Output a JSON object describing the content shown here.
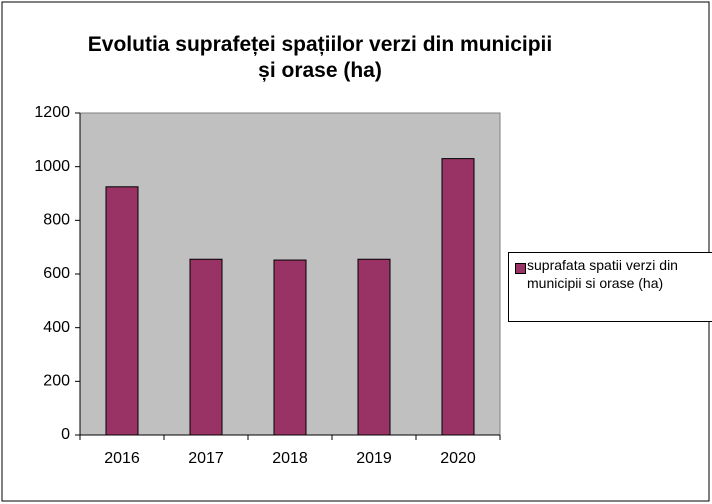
{
  "chart_data": {
    "type": "bar",
    "title": "Evolutia suprafeței  spațiilor verzi din municipii și orase (ha)",
    "categories": [
      "2016",
      "2017",
      "2018",
      "2019",
      "2020"
    ],
    "series": [
      {
        "name": "suprafata spatii verzi din municipii si orase (ha)",
        "color": "#993366",
        "values": [
          925,
          655,
          652,
          655,
          1030
        ]
      }
    ],
    "ylim": [
      0,
      1200
    ],
    "yticks": [
      0,
      200,
      400,
      600,
      800,
      1000,
      1200
    ],
    "plot_background": "#c0c0c0",
    "legend": "right"
  }
}
